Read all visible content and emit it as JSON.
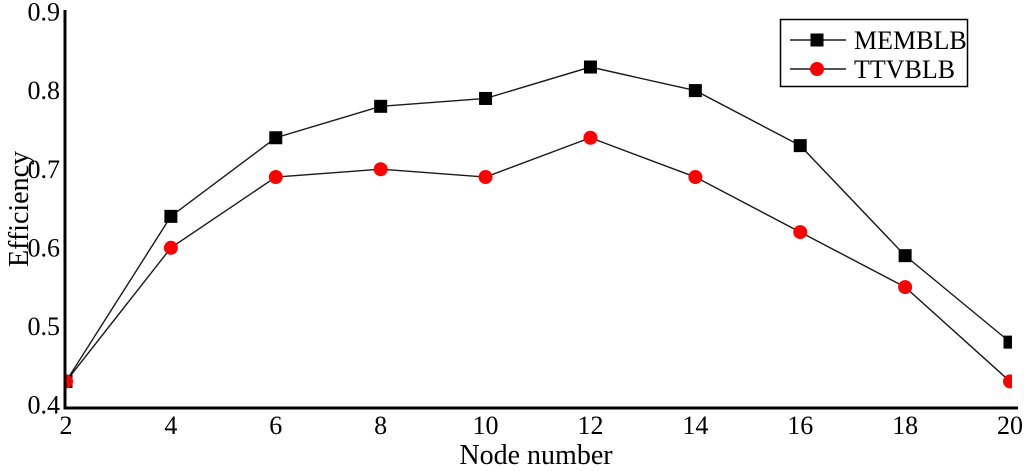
{
  "figure": {
    "background_color": "#ffffff",
    "axis_color": "#000000"
  },
  "chart_data": {
    "type": "line",
    "title": "",
    "xlabel": "Node number",
    "ylabel": "Efficiency",
    "xlim": [
      2,
      20
    ],
    "ylim": [
      0.4,
      0.9
    ],
    "x_ticks": [
      "2",
      "4",
      "6",
      "8",
      "10",
      "12",
      "14",
      "16",
      "18",
      "20"
    ],
    "y_ticks": [
      "0.4",
      "0.5",
      "0.6",
      "0.7",
      "0.8",
      "0.9"
    ],
    "grid": false,
    "legend_position": "top-right",
    "x": [
      2,
      4,
      6,
      8,
      10,
      12,
      14,
      16,
      18,
      20
    ],
    "series": [
      {
        "name": "MEMBLB",
        "marker": "square",
        "marker_color": "#000000",
        "line_color": "#1a1a1a",
        "values": [
          0.43,
          0.64,
          0.74,
          0.78,
          0.79,
          0.83,
          0.8,
          0.73,
          0.59,
          0.48
        ]
      },
      {
        "name": "TTVBLB",
        "marker": "circle",
        "marker_color": "#ff0000",
        "line_color": "#1a1a1a",
        "values": [
          0.43,
          0.6,
          0.69,
          0.7,
          0.69,
          0.74,
          0.69,
          0.62,
          0.55,
          0.43
        ]
      }
    ]
  }
}
